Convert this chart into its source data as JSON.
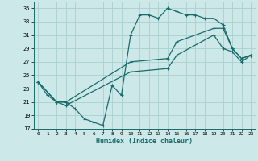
{
  "xlabel": "Humidex (Indice chaleur)",
  "xlim": [
    -0.5,
    23.5
  ],
  "ylim": [
    17,
    36
  ],
  "yticks": [
    17,
    19,
    21,
    23,
    25,
    27,
    29,
    31,
    33,
    35
  ],
  "xticks": [
    0,
    1,
    2,
    3,
    4,
    5,
    6,
    7,
    8,
    9,
    10,
    11,
    12,
    13,
    14,
    15,
    16,
    17,
    18,
    19,
    20,
    21,
    22,
    23
  ],
  "bg_color": "#cce8e8",
  "grid_color": "#aad0d0",
  "line_color": "#1a6b6b",
  "line1_x": [
    0,
    1,
    2,
    3,
    4,
    5,
    6,
    7,
    8,
    9,
    10,
    11,
    12,
    13,
    14,
    15,
    16,
    17,
    18,
    19,
    20,
    21,
    22,
    23
  ],
  "line1_y": [
    24,
    22,
    21,
    21,
    20,
    18.5,
    18,
    17.5,
    23.5,
    22,
    31,
    34,
    34,
    33.5,
    35,
    34.5,
    34,
    34,
    33.5,
    33.5,
    32.5,
    29,
    27.5,
    28
  ],
  "line2_x": [
    0,
    2,
    3,
    10,
    14,
    15,
    19,
    20,
    21,
    22,
    23
  ],
  "line2_y": [
    24,
    21,
    21,
    27,
    27.5,
    30,
    32,
    32,
    29,
    27.5,
    28
  ],
  "line3_x": [
    0,
    2,
    3,
    10,
    14,
    15,
    19,
    20,
    21,
    22,
    23
  ],
  "line3_y": [
    24,
    21,
    20.5,
    25.5,
    26,
    28,
    31,
    29,
    28.5,
    27,
    28
  ]
}
